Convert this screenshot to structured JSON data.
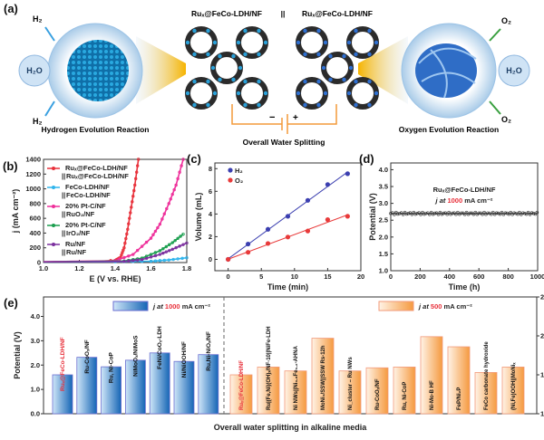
{
  "panel_a": {
    "label": "(a)",
    "cathode_label": "Ruₓ@FeCo-LDH/NF",
    "separator": "||",
    "anode_label": "Ruₓ@FeCo-LDH/NF",
    "her_title": "Hydrogen Evolution Reaction",
    "oer_title": "Oxygen Evolution Reaction",
    "overall": "Overall Water Splitting",
    "h2": "H₂",
    "o2": "O₂",
    "h2o": "H₂O",
    "minus": "−",
    "plus": "+"
  },
  "chart_data": [
    {
      "id": "b",
      "label": "(b)",
      "type": "line",
      "xlabel": "E (V vs. RHE)",
      "ylabel": "j (mA cm⁻²)",
      "xlim": [
        1.0,
        1.8
      ],
      "ylim": [
        0,
        1400
      ],
      "xticks": [
        "1.0",
        "1.2",
        "1.4",
        "1.6",
        "1.8"
      ],
      "yticks": [
        "0",
        "200",
        "400",
        "600",
        "800",
        "1000",
        "1200",
        "1400"
      ],
      "legend_position": "top-left",
      "series": [
        {
          "name": "Ruₓ@FeCo-LDH/NF || Ruₓ@FeCo-LDH/NF",
          "name1": "Ruₓ@FeCo-LDH/NF",
          "name2": "Ruₓ@FeCo-LDH/NF",
          "color": "#e8303a",
          "points": [
            [
              1.0,
              10
            ],
            [
              1.3,
              15
            ],
            [
              1.4,
              30
            ],
            [
              1.43,
              70
            ],
            [
              1.45,
              200
            ],
            [
              1.47,
              450
            ],
            [
              1.49,
              750
            ],
            [
              1.51,
              1050
            ],
            [
              1.53,
              1400
            ]
          ]
        },
        {
          "name": "FeCo-LDH/NF || FeCo-LDH/NF",
          "name1": "FeCo-LDH/NF",
          "name2": "FeCo-LDH/NF",
          "color": "#2fb4ec",
          "points": [
            [
              1.0,
              8
            ],
            [
              1.4,
              10
            ],
            [
              1.6,
              18
            ],
            [
              1.7,
              35
            ],
            [
              1.8,
              65
            ]
          ]
        },
        {
          "name": "20% Pt-C/NF || RuO₂/NF",
          "name1": "20% Pt-C/NF",
          "name2": "RuO₂/NF",
          "color": "#ee2f9a",
          "points": [
            [
              1.0,
              10
            ],
            [
              1.4,
              25
            ],
            [
              1.5,
              110
            ],
            [
              1.6,
              330
            ],
            [
              1.65,
              520
            ],
            [
              1.7,
              800
            ],
            [
              1.74,
              1050
            ],
            [
              1.78,
              1400
            ]
          ]
        },
        {
          "name": "20% Pt-C/NF || IrO₂/NF",
          "name1": "20% Pt-C/NF",
          "name2": "IrO₂/NF",
          "color": "#1a9e4e",
          "points": [
            [
              1.0,
              9
            ],
            [
              1.45,
              20
            ],
            [
              1.55,
              60
            ],
            [
              1.65,
              160
            ],
            [
              1.72,
              270
            ],
            [
              1.78,
              385
            ]
          ]
        },
        {
          "name": "Ru/NF || Ru/NF",
          "name1": "Ru/NF",
          "name2": "Ru/NF",
          "color": "#7b2f9e",
          "points": [
            [
              1.0,
              9
            ],
            [
              1.45,
              15
            ],
            [
              1.55,
              40
            ],
            [
              1.65,
              110
            ],
            [
              1.72,
              180
            ],
            [
              1.8,
              265
            ]
          ]
        }
      ]
    },
    {
      "id": "c",
      "label": "(c)",
      "type": "scatter",
      "xlabel": "Time (min)",
      "ylabel": "Volume (mL)",
      "xlim": [
        -2,
        20
      ],
      "ylim": [
        -1,
        8.5
      ],
      "xticks": [
        "0",
        "5",
        "10",
        "15",
        "20"
      ],
      "yticks": [
        "0",
        "2",
        "4",
        "6",
        "8"
      ],
      "legend_position": "top-left",
      "series": [
        {
          "name": "H₂",
          "color": "#3b3fb0",
          "points": [
            [
              0,
              0
            ],
            [
              3,
              1.35
            ],
            [
              6,
              2.65
            ],
            [
              9,
              3.8
            ],
            [
              12,
              5.2
            ],
            [
              15,
              6.6
            ],
            [
              18,
              7.55
            ]
          ]
        },
        {
          "name": "O₂",
          "color": "#e83a3a",
          "points": [
            [
              0,
              0
            ],
            [
              3,
              0.62
            ],
            [
              6,
              1.4
            ],
            [
              9,
              1.97
            ],
            [
              12,
              2.5
            ],
            [
              15,
              3.5
            ],
            [
              18,
              3.8
            ]
          ]
        }
      ]
    },
    {
      "id": "d",
      "label": "(d)",
      "type": "line",
      "xlabel": "Time (h)",
      "ylabel": "Potential (V)",
      "xlim": [
        0,
        1000
      ],
      "ylim": [
        1.0,
        4.2
      ],
      "xticks": [
        "0",
        "200",
        "400",
        "600",
        "800",
        "1000"
      ],
      "yticks": [
        "1.0",
        "1.5",
        "2.0",
        "2.5",
        "3.0",
        "3.5",
        "4.0"
      ],
      "annotation": "Ruₓ@FeCo-LDH/NF",
      "annotation2": {
        "pre": "j at ",
        "value": "1000",
        "post": " mA cm⁻²"
      },
      "series": [
        {
          "color": "#333333",
          "mean": 2.7
        }
      ]
    },
    {
      "id": "e",
      "label": "(e)",
      "type": "bar",
      "xlabel": "Overall water splitting in alkaline media",
      "ylabel": "Potential (V)",
      "ylim_left": [
        0,
        4.8
      ],
      "yticks_left": [
        "0.0",
        "1.0",
        "2.0",
        "3.0",
        "4.0"
      ],
      "ylim_right": [
        1.0,
        2.5
      ],
      "yticks_right": [
        "1.0",
        "1.5",
        "2.0",
        "2.5"
      ],
      "legend_left": {
        "pre": "j at ",
        "value": "1000",
        "post": " mA cm⁻²"
      },
      "legend_right": {
        "pre": "j at ",
        "value": "500",
        "post": " mA cm⁻²"
      },
      "colors": {
        "blue": "#1f6fbf",
        "orange": "#f5a04a",
        "highlight": "#e8303a"
      },
      "groups": [
        {
          "axis": "left",
          "bars": [
            {
              "label": "Ruₓ@FeCo-LDH/NF",
              "value": 1.6,
              "highlight": true
            },
            {
              "label": "Ru-CoOₓ/NF",
              "value": 2.32
            },
            {
              "label": "Ru, Ni-CoP",
              "value": 1.93
            },
            {
              "label": "NiMoOₓ/NiMoS",
              "value": 2.2
            },
            {
              "label": "FeNi/CoOₓ-LDH",
              "value": 2.5
            },
            {
              "label": "Ni/NiOOH/NF",
              "value": 2.15
            },
            {
              "label": "Ru,Ni-NiOₓ/NF",
              "value": 2.43
            }
          ]
        },
        {
          "axis": "right",
          "bars": [
            {
              "label": "Ruₓ@FeCo-LDH/NF",
              "value": 1.5,
              "highlight": true
            },
            {
              "label": "Ru|(Fe,Ni)(OH)ₓ/NF-10||NiFe-LDH",
              "value": 1.6
            },
            {
              "label": "Ni NWs||Ni₀.₈Fe₀.₂-AHNA",
              "value": 1.55
            },
            {
              "label": "MoNi₄/SSW||SSW Rs-12h",
              "value": 1.97
            },
            {
              "label": "Ni_cluster – Ru NWs",
              "value": 1.55
            },
            {
              "label": "Ru-CoOₓ/NF",
              "value": 1.59
            },
            {
              "label": "Ru, Ni-CoP",
              "value": 1.6
            },
            {
              "label": "Ni-Mo-B HF",
              "value": 1.99
            },
            {
              "label": "FeP/Ni₂P",
              "value": 1.86
            },
            {
              "label": "FeCo carbonate hydroxide",
              "value": 1.53
            },
            {
              "label": "(Ni,Fe)OOH||MoNiₓ",
              "value": 1.6
            }
          ]
        }
      ]
    }
  ]
}
